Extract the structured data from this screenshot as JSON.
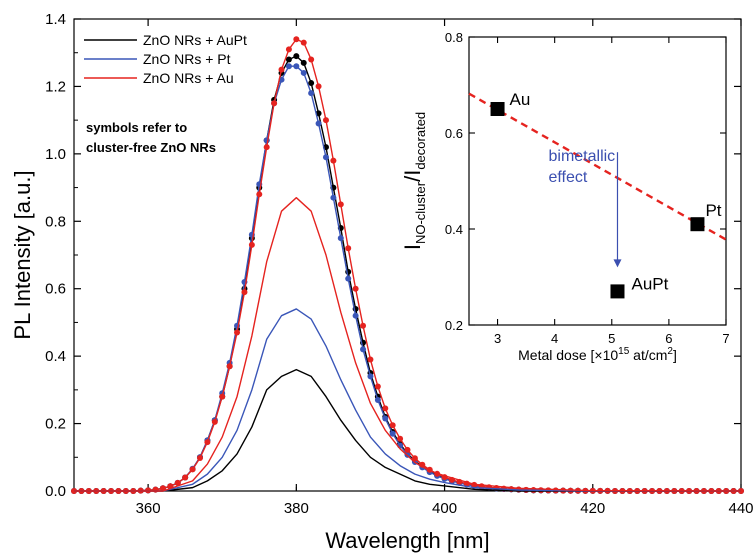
{
  "chart_data": [
    {
      "type": "line",
      "xlabel": "Wavelength [nm]",
      "ylabel": "PL Intensity [a.u.]",
      "xlim": [
        350,
        440
      ],
      "ylim": [
        0.0,
        1.4
      ],
      "xticks": [
        360,
        380,
        400,
        420,
        440
      ],
      "yticks": [
        0.0,
        0.2,
        0.4,
        0.6,
        0.8,
        1.0,
        1.2,
        1.4
      ],
      "legend_position": "top-left",
      "annotation": [
        "symbols refer to",
        "cluster-free ZnO NRs"
      ],
      "series": [
        {
          "name": "ZnO NRs + AuPt",
          "color": "#000000",
          "style": "line",
          "x": [
            350,
            362,
            366,
            368,
            370,
            372,
            374,
            376,
            378,
            380,
            382,
            384,
            386,
            388,
            390,
            392,
            394,
            396,
            398,
            400,
            404,
            410,
            420,
            440
          ],
          "y": [
            0.0,
            0.0,
            0.01,
            0.03,
            0.06,
            0.11,
            0.19,
            0.3,
            0.34,
            0.36,
            0.34,
            0.28,
            0.21,
            0.15,
            0.1,
            0.07,
            0.05,
            0.03,
            0.02,
            0.015,
            0.005,
            0.0,
            0.0,
            0.0
          ]
        },
        {
          "name": "ZnO NRs + Pt",
          "color": "#3a56b8",
          "style": "line",
          "x": [
            350,
            362,
            366,
            368,
            370,
            372,
            374,
            376,
            378,
            380,
            382,
            384,
            386,
            388,
            390,
            392,
            394,
            396,
            398,
            400,
            404,
            410,
            420,
            440
          ],
          "y": [
            0.0,
            0.0,
            0.02,
            0.05,
            0.1,
            0.18,
            0.3,
            0.45,
            0.52,
            0.54,
            0.51,
            0.43,
            0.33,
            0.24,
            0.16,
            0.11,
            0.075,
            0.05,
            0.035,
            0.025,
            0.01,
            0.003,
            0.0,
            0.0
          ]
        },
        {
          "name": "ZnO NRs + Au",
          "color": "#e5231f",
          "style": "line",
          "x": [
            350,
            362,
            366,
            368,
            370,
            372,
            374,
            376,
            378,
            380,
            382,
            384,
            386,
            388,
            390,
            392,
            394,
            396,
            398,
            400,
            404,
            410,
            420,
            440
          ],
          "y": [
            0.0,
            0.0,
            0.03,
            0.08,
            0.16,
            0.28,
            0.46,
            0.68,
            0.83,
            0.87,
            0.83,
            0.7,
            0.53,
            0.38,
            0.26,
            0.18,
            0.125,
            0.085,
            0.06,
            0.045,
            0.02,
            0.008,
            0.001,
            0.0
          ]
        },
        {
          "name": "",
          "color": "#000000",
          "style": "line+markers",
          "x": [
            350,
            351,
            352,
            353,
            354,
            355,
            356,
            357,
            358,
            359,
            360,
            361,
            362,
            363,
            364,
            365,
            366,
            367,
            368,
            369,
            370,
            371,
            372,
            373,
            374,
            375,
            376,
            377,
            378,
            379,
            380,
            381,
            382,
            383,
            384,
            385,
            386,
            387,
            388,
            389,
            390,
            391,
            392,
            393,
            394,
            395,
            396,
            397,
            398,
            399,
            400,
            401,
            402,
            403,
            404,
            405,
            406,
            407,
            408,
            409,
            410,
            411,
            412,
            413,
            414,
            415,
            416,
            417,
            418,
            419,
            420,
            421,
            422,
            423,
            424,
            425,
            426,
            427,
            428,
            429,
            430,
            431,
            432,
            433,
            434,
            435,
            436,
            437,
            438,
            439,
            440
          ],
          "y": [
            0.0,
            0.0,
            0.0,
            0.0,
            0.0,
            0.0,
            0.0,
            0.0,
            0.0,
            0.001,
            0.002,
            0.004,
            0.008,
            0.014,
            0.024,
            0.04,
            0.065,
            0.1,
            0.15,
            0.21,
            0.28,
            0.37,
            0.48,
            0.6,
            0.75,
            0.9,
            1.04,
            1.16,
            1.24,
            1.28,
            1.29,
            1.27,
            1.21,
            1.12,
            1.02,
            0.9,
            0.78,
            0.65,
            0.54,
            0.44,
            0.35,
            0.28,
            0.22,
            0.175,
            0.14,
            0.11,
            0.09,
            0.072,
            0.058,
            0.047,
            0.038,
            0.031,
            0.025,
            0.02,
            0.016,
            0.013,
            0.01,
            0.008,
            0.006,
            0.005,
            0.004,
            0.003,
            0.002,
            0.0018,
            0.0015,
            0.0012,
            0.001,
            0.0008,
            0.0006,
            0.0005,
            0.0004,
            0.0003,
            0.0002,
            0.0001,
            0.0,
            0.0,
            0.0,
            0.0,
            0.0,
            0.0,
            0.0,
            0.0,
            0.0,
            0.0,
            0.0,
            0.0,
            0.0,
            0.0,
            0.0,
            0.0,
            0.0
          ]
        },
        {
          "name": "",
          "color": "#3a56b8",
          "style": "line+markers",
          "x": [
            350,
            351,
            352,
            353,
            354,
            355,
            356,
            357,
            358,
            359,
            360,
            361,
            362,
            363,
            364,
            365,
            366,
            367,
            368,
            369,
            370,
            371,
            372,
            373,
            374,
            375,
            376,
            377,
            378,
            379,
            380,
            381,
            382,
            383,
            384,
            385,
            386,
            387,
            388,
            389,
            390,
            391,
            392,
            393,
            394,
            395,
            396,
            397,
            398,
            399,
            400,
            401,
            402,
            403,
            404,
            405,
            406,
            407,
            408,
            409,
            410,
            411,
            412,
            413,
            414,
            415,
            416,
            417,
            418,
            419,
            420,
            421,
            422,
            423,
            424,
            425,
            426,
            427,
            428,
            429,
            430,
            431,
            432,
            433,
            434,
            435,
            436,
            437,
            438,
            439,
            440
          ],
          "y": [
            0.0,
            0.0,
            0.0,
            0.0,
            0.0,
            0.0,
            0.0,
            0.0,
            0.0,
            0.001,
            0.002,
            0.004,
            0.008,
            0.014,
            0.024,
            0.04,
            0.066,
            0.1,
            0.15,
            0.21,
            0.29,
            0.38,
            0.49,
            0.62,
            0.76,
            0.91,
            1.04,
            1.15,
            1.22,
            1.26,
            1.26,
            1.24,
            1.18,
            1.09,
            0.99,
            0.87,
            0.75,
            0.63,
            0.52,
            0.42,
            0.34,
            0.27,
            0.215,
            0.17,
            0.135,
            0.107,
            0.086,
            0.07,
            0.056,
            0.045,
            0.036,
            0.029,
            0.024,
            0.019,
            0.015,
            0.012,
            0.0095,
            0.0075,
            0.006,
            0.0048,
            0.0038,
            0.003,
            0.0024,
            0.0019,
            0.0015,
            0.0012,
            0.001,
            0.0008,
            0.0006,
            0.0005,
            0.0004,
            0.0003,
            0.0002,
            0.0001,
            0.0,
            0.0,
            0.0,
            0.0,
            0.0,
            0.0,
            0.0,
            0.0,
            0.0,
            0.0,
            0.0,
            0.0,
            0.0,
            0.0,
            0.0,
            0.0,
            0.0
          ]
        },
        {
          "name": "",
          "color": "#e5231f",
          "style": "line+markers",
          "x": [
            350,
            351,
            352,
            353,
            354,
            355,
            356,
            357,
            358,
            359,
            360,
            361,
            362,
            363,
            364,
            365,
            366,
            367,
            368,
            369,
            370,
            371,
            372,
            373,
            374,
            375,
            376,
            377,
            378,
            379,
            380,
            381,
            382,
            383,
            384,
            385,
            386,
            387,
            388,
            389,
            390,
            391,
            392,
            393,
            394,
            395,
            396,
            397,
            398,
            399,
            400,
            401,
            402,
            403,
            404,
            405,
            406,
            407,
            408,
            409,
            410,
            411,
            412,
            413,
            414,
            415,
            416,
            417,
            418,
            419,
            420,
            421,
            422,
            423,
            424,
            425,
            426,
            427,
            428,
            429,
            430,
            431,
            432,
            433,
            434,
            435,
            436,
            437,
            438,
            439,
            440
          ],
          "y": [
            0.0,
            0.0,
            0.0,
            0.0,
            0.0,
            0.0,
            0.0,
            0.0,
            0.0,
            0.001,
            0.002,
            0.004,
            0.008,
            0.014,
            0.024,
            0.04,
            0.064,
            0.098,
            0.145,
            0.205,
            0.28,
            0.37,
            0.47,
            0.59,
            0.73,
            0.88,
            1.02,
            1.15,
            1.25,
            1.31,
            1.34,
            1.33,
            1.28,
            1.2,
            1.1,
            0.98,
            0.85,
            0.72,
            0.6,
            0.49,
            0.39,
            0.31,
            0.245,
            0.195,
            0.155,
            0.122,
            0.097,
            0.078,
            0.063,
            0.051,
            0.041,
            0.033,
            0.027,
            0.022,
            0.018,
            0.014,
            0.011,
            0.009,
            0.007,
            0.0055,
            0.0044,
            0.0035,
            0.0028,
            0.0022,
            0.0018,
            0.0014,
            0.0011,
            0.0009,
            0.0007,
            0.0005,
            0.0004,
            0.0003,
            0.0002,
            0.0001,
            0.0,
            0.0,
            0.0,
            0.0,
            0.0,
            0.0,
            0.0,
            0.0,
            0.0,
            0.0,
            0.0,
            0.0,
            0.0,
            0.0,
            0.0,
            0.0,
            0.0
          ]
        }
      ]
    },
    {
      "type": "scatter",
      "xlabel_parts": [
        "Metal dose [×10",
        "15",
        " at/cm",
        "2",
        "]"
      ],
      "ylabel_parts": [
        "I",
        "NO-cluster",
        "/I",
        "decorated"
      ],
      "xlim": [
        2.5,
        7.0
      ],
      "ylim": [
        0.2,
        0.8
      ],
      "xticks": [
        3,
        4,
        5,
        6,
        7
      ],
      "yticks": [
        0.2,
        0.4,
        0.6,
        0.8
      ],
      "points": [
        {
          "x": 3.0,
          "y": 0.65,
          "label": "Au"
        },
        {
          "x": 6.5,
          "y": 0.41,
          "label": "Pt"
        },
        {
          "x": 5.1,
          "y": 0.27,
          "label": "AuPt"
        }
      ],
      "trend_line": {
        "x": [
          2.5,
          7.0
        ],
        "y": [
          0.682,
          0.378
        ],
        "color": "#e5231f",
        "style": "dashed"
      },
      "annotation": {
        "lines": [
          "bimetallic",
          "effect"
        ],
        "color": "#3b4fb0",
        "arrow_from": [
          5.1,
          0.56
        ],
        "arrow_to": [
          5.1,
          0.32
        ]
      }
    }
  ]
}
